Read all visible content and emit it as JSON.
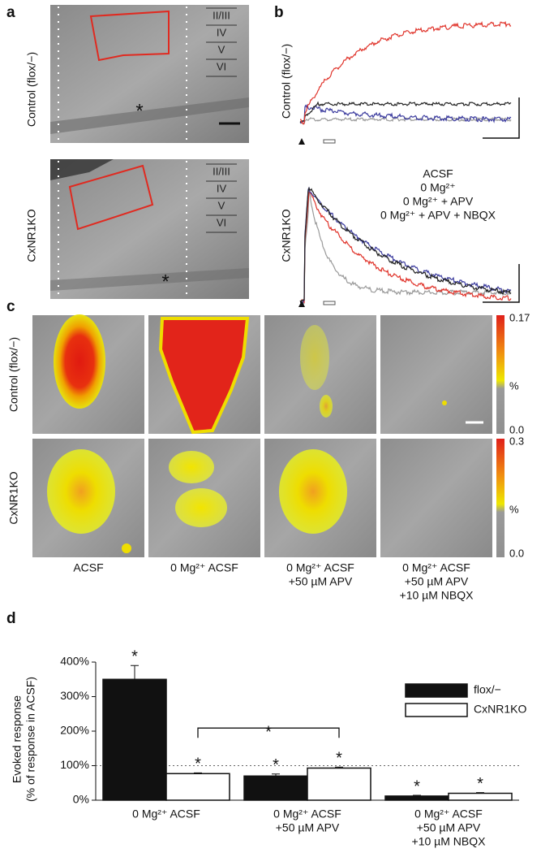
{
  "panel_a": {
    "label": "a",
    "row_labels": [
      "Control (flox/−)",
      "CxNR1KO"
    ],
    "layers": [
      "II/III",
      "IV",
      "V",
      "VI"
    ],
    "marker": "*"
  },
  "panel_b": {
    "label": "b",
    "row_labels": [
      "Control (flox/−)",
      "CxNR1KO"
    ],
    "legend": [
      {
        "text": "ACSF",
        "color": "#222222"
      },
      {
        "text": "0 Mg²⁺",
        "color": "#e0342b"
      },
      {
        "text": "0 Mg²⁺ + APV",
        "color": "#3b3b9e"
      },
      {
        "text": "0 Mg²⁺ + APV + NBQX",
        "color": "#9a9a9a"
      }
    ]
  },
  "panel_c": {
    "label": "c",
    "row_labels": [
      "Control (flox/−)",
      "CxNR1KO"
    ],
    "scales": [
      [
        "0.17",
        "%",
        "0.0"
      ],
      [
        "0.3",
        "%",
        "0.0"
      ]
    ],
    "conditions": [
      [
        "ACSF"
      ],
      [
        "0 Mg²⁺ ACSF"
      ],
      [
        "0 Mg²⁺ ACSF",
        "+50 µM APV"
      ],
      [
        "0 Mg²⁺ ACSF",
        "+50 µM APV",
        "+10 µM NBQX"
      ]
    ]
  },
  "chart_data": {
    "type": "bar",
    "label": "d",
    "y_label": [
      "Evoked response",
      "(% of response in ACSF)"
    ],
    "categories": [
      [
        "0 Mg²⁺ ACSF"
      ],
      [
        "0 Mg²⁺ ACSF",
        "+50 µM APV"
      ],
      [
        "0 Mg²⁺ ACSF",
        "+50 µM APV",
        "+10 µM NBQX"
      ]
    ],
    "series": [
      {
        "name": "flox/−",
        "color": "#111111",
        "values": [
          350,
          70,
          12
        ],
        "errors": [
          40,
          6,
          2
        ],
        "markers": [
          "*",
          "*",
          "*"
        ]
      },
      {
        "name": "CxNR1KO",
        "color": "#ffffff",
        "values": [
          77,
          93,
          20
        ],
        "errors": [
          2,
          3,
          2
        ],
        "markers": [
          "*",
          "*",
          "*"
        ]
      }
    ],
    "bracket": {
      "text": "*",
      "series": 1,
      "categories": [
        0,
        1
      ]
    },
    "reference_line": 100,
    "ylim": [
      0,
      400
    ],
    "yticks": [
      {
        "value": 0,
        "label": "0%"
      },
      {
        "value": 100,
        "label": "100%"
      },
      {
        "value": 200,
        "label": "200%"
      },
      {
        "value": 300,
        "label": "300%"
      },
      {
        "value": 400,
        "label": "400%"
      }
    ]
  }
}
